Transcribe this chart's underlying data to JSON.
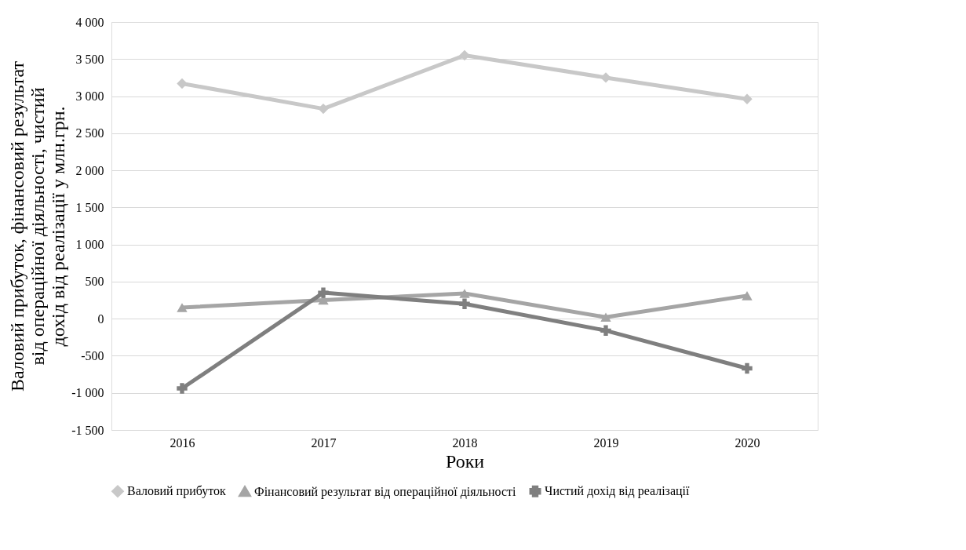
{
  "chart_data": {
    "type": "line",
    "ylabel": "Валовий прибуток, фінансовий результат від операційної діяльності, чистий дохід від реалізації у млн.грн.",
    "xlabel": "Роки",
    "categories": [
      "2016",
      "2017",
      "2018",
      "2019",
      "2020"
    ],
    "series": [
      {
        "name": "Валовий прибуток",
        "color": "#c8c8c8",
        "marker": "diamond",
        "values": [
          3170,
          2830,
          3550,
          3250,
          2960
        ]
      },
      {
        "name": "Фінансовий результат від операційної діяльності",
        "color": "#a5a5a5",
        "marker": "triangle",
        "values": [
          150,
          250,
          340,
          20,
          310
        ]
      },
      {
        "name": "Чистий дохід від реалізації",
        "color": "#7f7f7f",
        "marker": "cross",
        "values": [
          -940,
          350,
          200,
          -160,
          -670
        ]
      }
    ],
    "ylim": [
      -1500,
      4000
    ],
    "yticks": [
      {
        "value": -1500,
        "label": "-1 500"
      },
      {
        "value": -1000,
        "label": "-1 000"
      },
      -500,
      0,
      500,
      {
        "value": 1000,
        "label": "1 000"
      },
      {
        "value": 1500,
        "label": "1 500"
      },
      {
        "value": 2000,
        "label": "2 000"
      },
      {
        "value": 2500,
        "label": "2 500"
      },
      {
        "value": 3000,
        "label": "3 000"
      },
      {
        "value": 3500,
        "label": "3 500"
      },
      {
        "value": 4000,
        "label": "4 000"
      }
    ],
    "grid": "y",
    "legend": "bottom",
    "line_style": "solid"
  }
}
